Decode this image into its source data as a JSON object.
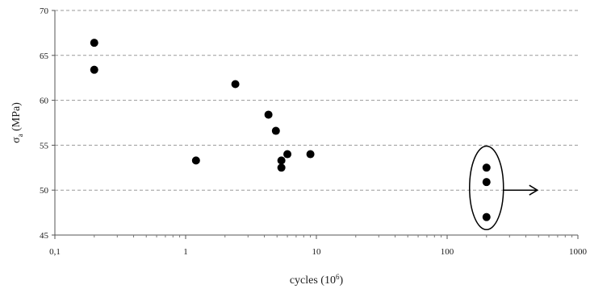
{
  "chart_data": {
    "type": "scatter",
    "xlabel": "cycles (10",
    "xlabel_sup": "6",
    "xlabel_end": ")",
    "ylabel": "σ",
    "ylabel_sub": "a",
    "ylabel_end": " (MPa)",
    "x_scale": "log",
    "xlim": [
      0.1,
      1000
    ],
    "ylim": [
      45,
      70
    ],
    "x_ticks": [
      0.1,
      1,
      10,
      100,
      1000
    ],
    "x_tick_labels": [
      "0,1",
      "1",
      "10",
      "100",
      "1000"
    ],
    "y_ticks": [
      45,
      50,
      55,
      60,
      65,
      70
    ],
    "y_tick_labels": [
      "45",
      "50",
      "55",
      "60",
      "65",
      "70"
    ],
    "grid": "horizontal dashed",
    "marker_color": "#000000",
    "series": [
      {
        "points": [
          {
            "x": 0.2,
            "y": 66.4
          },
          {
            "x": 0.2,
            "y": 63.4
          },
          {
            "x": 1.2,
            "y": 53.3
          },
          {
            "x": 2.4,
            "y": 61.8
          },
          {
            "x": 4.3,
            "y": 58.4
          },
          {
            "x": 4.9,
            "y": 56.6
          },
          {
            "x": 5.4,
            "y": 53.3
          },
          {
            "x": 5.4,
            "y": 52.5
          },
          {
            "x": 6.0,
            "y": 54.0
          },
          {
            "x": 9.0,
            "y": 54.0
          },
          {
            "x": 200,
            "y": 52.5
          },
          {
            "x": 200,
            "y": 50.9
          },
          {
            "x": 200,
            "y": 47.0
          }
        ]
      }
    ],
    "annotations": {
      "runout_ellipse": {
        "x_center": 200,
        "y_center": 50.0,
        "y_top": 54.9,
        "y_bottom": 45.6
      },
      "runout_arrow": {
        "x_start": 260,
        "x_end": 490,
        "y": 50.0
      }
    }
  }
}
